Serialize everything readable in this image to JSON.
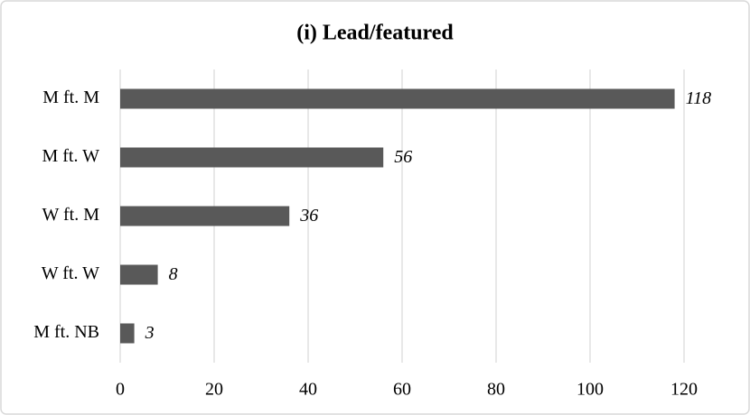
{
  "chart_data": {
    "type": "bar",
    "orientation": "horizontal",
    "title": "(i) Lead/featured",
    "categories": [
      "M ft. M",
      "M ft. W",
      "W ft. M",
      "W ft. W",
      "M ft. NB"
    ],
    "values": [
      118,
      56,
      36,
      8,
      3
    ],
    "color": "#595959",
    "xlim": [
      0,
      120
    ],
    "xticks": [
      0,
      20,
      40,
      60,
      80,
      100,
      120
    ],
    "grid": true
  }
}
